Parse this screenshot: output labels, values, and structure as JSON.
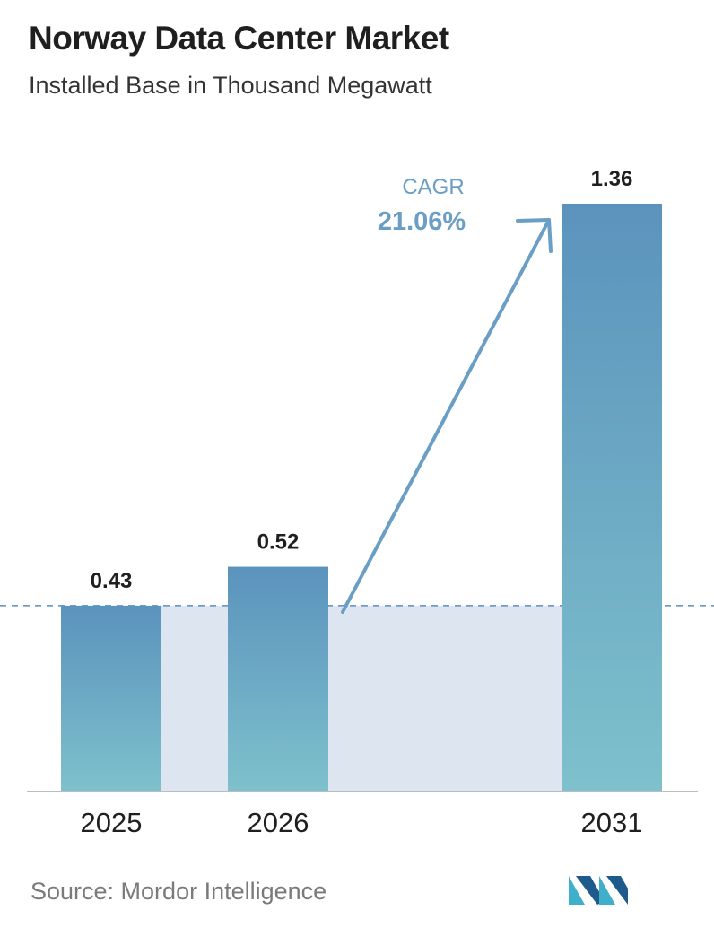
{
  "header": {
    "title": "Norway Data Center Market",
    "subtitle": "Installed Base in Thousand Megawatt"
  },
  "cagr": {
    "label": "CAGR",
    "value": "21.06%"
  },
  "footer": {
    "source": "Source:  Mordor Intelligence"
  },
  "colors": {
    "bar_top": "#5b93bd",
    "bar_bottom": "#7ec1cc",
    "band": "#dde6f0",
    "accent": "#6a9ec5",
    "dashed_line": "#5b8fbd",
    "baseline": "#bdbdbd"
  },
  "chart_data": {
    "type": "bar",
    "categories": [
      "2025",
      "2026",
      "2031"
    ],
    "values": [
      0.43,
      0.52,
      1.36
    ],
    "value_labels": [
      "0.43",
      "0.52",
      "1.36"
    ],
    "title": "Norway Data Center Market",
    "subtitle": "Installed Base in Thousand Megawatt",
    "xlabel": "",
    "ylabel": "",
    "ylim": [
      0,
      1.36
    ],
    "grid": false,
    "legend": "none",
    "reference_line_value": 0.43
  }
}
